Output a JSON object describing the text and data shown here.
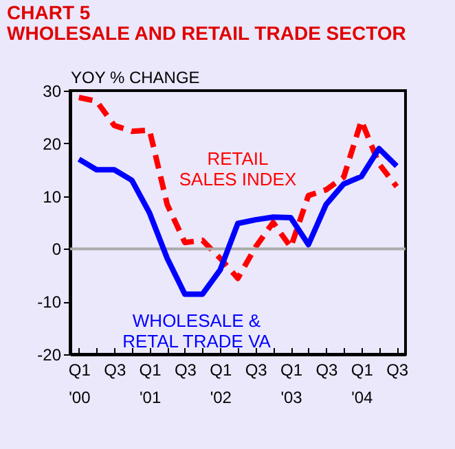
{
  "chart_data": {
    "type": "line",
    "title": "CHART 5",
    "subtitle": "WHOLESALE AND RETAIL TRADE SECTOR",
    "ylabel": "YOY % CHANGE",
    "categories": [
      "Q1\n'00",
      null,
      "Q3",
      null,
      "Q1\n'01",
      null,
      "Q3",
      null,
      "Q1\n'02",
      null,
      "Q3",
      null,
      "Q1\n'03",
      null,
      "Q3",
      null,
      "Q1\n'04",
      null,
      "Q3"
    ],
    "ylim": [
      -20,
      30
    ],
    "yticks": [
      -20,
      -10,
      0,
      10,
      20,
      30
    ],
    "grid": false,
    "marker": "none",
    "ref_lines": [
      {
        "axis": "y",
        "value": 0,
        "color": "#aaaaaa"
      }
    ],
    "series": [
      {
        "name": "RETAIL\nSALES INDEX",
        "color": "#ff0000",
        "line_style": "dashed",
        "values": [
          28.7,
          28,
          23.4,
          22.3,
          22.5,
          8.4,
          1.2,
          1.6,
          -1.8,
          -5.6,
          0.3,
          5,
          0.3,
          10.1,
          11.2,
          13.6,
          24.3,
          16.1,
          11.8
        ]
      },
      {
        "name": "WHOLESALE &\nRETAL TRADE VA",
        "color": "#0000ff",
        "line_style": "solid",
        "values": [
          17,
          15,
          15,
          13,
          6.8,
          -1.8,
          -8.6,
          -8.6,
          -4,
          4.8,
          5.5,
          6,
          5.9,
          0.8,
          8.4,
          12.3,
          13.7,
          19,
          15.7
        ]
      }
    ]
  }
}
